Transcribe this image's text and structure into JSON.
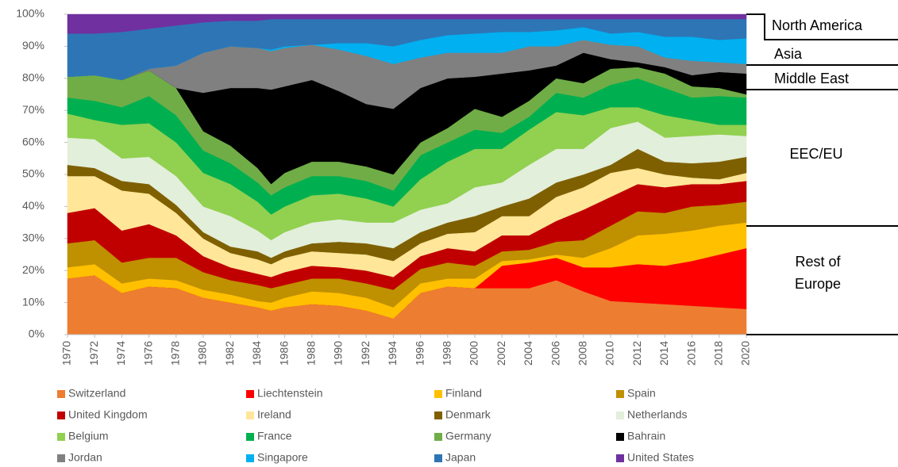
{
  "chart_data": {
    "type": "stacked_area",
    "x": [
      1970,
      1972,
      1974,
      1976,
      1978,
      1980,
      1982,
      1984,
      1985,
      1986,
      1988,
      1990,
      1992,
      1994,
      1996,
      1998,
      2000,
      2002,
      2004,
      2006,
      2008,
      2010,
      2012,
      2014,
      2016,
      2018,
      2020
    ],
    "xlim": [
      1970,
      2020
    ],
    "xticks": [
      1970,
      1972,
      1974,
      1976,
      1978,
      1980,
      1982,
      1984,
      1986,
      1988,
      1990,
      1992,
      1994,
      1996,
      1998,
      2000,
      2002,
      2004,
      2006,
      2008,
      2010,
      2012,
      2014,
      2016,
      2018,
      2020
    ],
    "ylim": [
      0,
      100
    ],
    "yticks": [
      {
        "value": 0,
        "label": "0%"
      },
      {
        "value": 10,
        "label": "10%"
      },
      {
        "value": 20,
        "label": "20%"
      },
      {
        "value": 30,
        "label": "30%"
      },
      {
        "value": 40,
        "label": "40%"
      },
      {
        "value": 50,
        "label": "50%"
      },
      {
        "value": 60,
        "label": "60%"
      },
      {
        "value": 70,
        "label": "70%"
      },
      {
        "value": 80,
        "label": "80%"
      },
      {
        "value": 90,
        "label": "90%"
      },
      {
        "value": 100,
        "label": "100%"
      }
    ],
    "region_labels": [
      [
        "North America"
      ],
      [
        "Asia"
      ],
      [
        "Middle East"
      ],
      [
        "EEC/EU"
      ],
      [
        "Rest of",
        "Europe"
      ]
    ],
    "series": [
      {
        "name": "Switzerland",
        "color": "#ED7D31",
        "values": [
          17.5,
          18.5,
          13,
          15,
          14.5,
          11.5,
          10,
          8.5,
          7.5,
          8.5,
          9.5,
          9,
          7.5,
          5,
          13,
          15,
          14.5,
          14.5,
          14.5,
          17,
          13.5,
          10.5,
          10,
          9.5,
          9,
          8.5,
          8
        ]
      },
      {
        "name": "Liechtenstein",
        "color": "#FF0000",
        "values": [
          0,
          0,
          0,
          0,
          0,
          0,
          0,
          0,
          0,
          0,
          0,
          0,
          0,
          0,
          0,
          0,
          0,
          7,
          8,
          7,
          7.5,
          10.5,
          12,
          12,
          14,
          16.5,
          19
        ]
      },
      {
        "name": "Finland",
        "color": "#FFC000",
        "values": [
          3.5,
          3.5,
          3,
          2.5,
          2.5,
          2.5,
          2.5,
          2,
          2.5,
          3,
          4,
          4,
          4,
          3.5,
          3,
          2.5,
          3,
          1.5,
          1,
          1,
          3,
          6,
          9,
          10,
          9.5,
          9,
          8
        ]
      },
      {
        "name": "Spain",
        "color": "#BF9000",
        "values": [
          7.5,
          7.5,
          6.5,
          6.5,
          7,
          5.5,
          4.5,
          5,
          4.5,
          4,
          4,
          4.5,
          4.5,
          5.5,
          4.5,
          5,
          4,
          3,
          3,
          4,
          5.5,
          7,
          7.5,
          6.5,
          7.5,
          6.5,
          6.5
        ]
      },
      {
        "name": "United Kingdom",
        "color": "#C00000",
        "values": [
          9.5,
          10,
          10,
          10.5,
          7,
          5,
          4,
          3.5,
          3.5,
          4,
          4,
          3.5,
          4,
          4,
          4,
          4.5,
          4.5,
          5,
          4.5,
          6.5,
          9.5,
          9,
          8.5,
          8,
          7,
          6.5,
          6.5
        ]
      },
      {
        "name": "Ireland",
        "color": "#FFE699",
        "values": [
          11.5,
          10,
          12.5,
          9.5,
          7,
          5.5,
          4.5,
          4.5,
          4,
          4.5,
          4.5,
          4.5,
          5,
          5,
          4,
          4.5,
          6,
          6,
          6,
          7.5,
          7,
          7.5,
          5,
          4,
          2,
          1.5,
          2.5
        ]
      },
      {
        "name": "Denmark",
        "color": "#7F6000",
        "values": [
          3.5,
          2.5,
          3,
          3,
          2.5,
          2,
          2,
          2.5,
          2,
          2,
          2.5,
          3.5,
          3.5,
          4,
          3.5,
          3.5,
          5,
          3,
          5.5,
          4.5,
          4,
          2.5,
          6,
          4,
          4.5,
          5.5,
          5
        ]
      },
      {
        "name": "Netherlands",
        "color": "#E2EFDA",
        "values": [
          8.5,
          9,
          7,
          8.5,
          9,
          8,
          9.5,
          6.5,
          5.5,
          6,
          6.5,
          7,
          6.5,
          8,
          7,
          6,
          9,
          7.5,
          10.5,
          10.5,
          8,
          11.5,
          8.5,
          7.5,
          8.5,
          8.5,
          6.5
        ]
      },
      {
        "name": "Belgium",
        "color": "#92D050",
        "values": [
          7.5,
          6,
          10.5,
          10.5,
          10.5,
          10.5,
          10,
          9,
          8,
          8,
          8.5,
          8,
          7.5,
          5,
          9.5,
          13,
          12,
          10.5,
          11,
          11.5,
          10.5,
          6.5,
          4.5,
          7,
          5,
          3,
          3.5
        ]
      },
      {
        "name": "France",
        "color": "#00B050",
        "values": [
          5,
          6,
          5.5,
          8.5,
          8.5,
          7,
          6.5,
          6,
          6,
          6,
          6,
          5.5,
          5.5,
          5,
          7.5,
          6,
          6,
          5,
          4,
          6,
          5.5,
          7,
          9,
          8.5,
          7,
          9,
          8.5
        ]
      },
      {
        "name": "Germany",
        "color": "#70AD47",
        "values": [
          6.5,
          8,
          8.5,
          8,
          8.5,
          6,
          5.5,
          4.5,
          3.5,
          4.5,
          4.5,
          4.5,
          4.5,
          5,
          4,
          4.5,
          6.5,
          5,
          5,
          4.5,
          4.5,
          5,
          3.5,
          4.5,
          3.5,
          2.5,
          1
        ]
      },
      {
        "name": "Bahrain",
        "color": "#000000",
        "values": [
          0,
          0,
          0,
          0,
          0,
          12,
          18,
          25,
          29.5,
          27,
          25.5,
          22,
          19.5,
          20.5,
          17,
          15.5,
          10,
          13.5,
          9.5,
          4,
          9.5,
          3,
          1.5,
          2,
          3.5,
          5,
          6.5
        ]
      },
      {
        "name": "Jordan",
        "color": "#808080",
        "values": [
          0,
          0,
          0,
          0.5,
          7,
          12.5,
          13,
          12.5,
          12,
          12,
          11,
          13,
          15,
          14,
          9.5,
          8,
          7.5,
          6.5,
          7.5,
          6,
          4,
          4.5,
          5,
          3,
          4.5,
          3,
          3
        ]
      },
      {
        "name": "Singapore",
        "color": "#00B0F0",
        "values": [
          0,
          0,
          0,
          0,
          0,
          0,
          0,
          0,
          0.5,
          0.5,
          0,
          2,
          4,
          5.5,
          5.5,
          5.5,
          6,
          6.5,
          4.5,
          5,
          4,
          3.5,
          4.5,
          6.5,
          7.5,
          7,
          8
        ]
      },
      {
        "name": "Japan",
        "color": "#2E75B6",
        "values": [
          13.5,
          13,
          15,
          12.5,
          12.5,
          9.5,
          8,
          8.5,
          9.5,
          8.5,
          8,
          7.5,
          7.5,
          8.5,
          6.5,
          5,
          4.5,
          4,
          4,
          3.5,
          2.5,
          4.5,
          4,
          5.5,
          5.5,
          6.5,
          6
        ]
      },
      {
        "name": "United States",
        "color": "#7030A0",
        "values": [
          6,
          6,
          5.5,
          4.5,
          3.5,
          2.5,
          2,
          2,
          1.5,
          1.5,
          1.5,
          1.5,
          1.5,
          1.5,
          1.5,
          1.5,
          1.5,
          1.5,
          1.5,
          1.5,
          1.5,
          1.5,
          1.5,
          1.5,
          1.5,
          1.5,
          1.5
        ]
      }
    ],
    "legend": "bottom",
    "legend_columns": 4
  }
}
